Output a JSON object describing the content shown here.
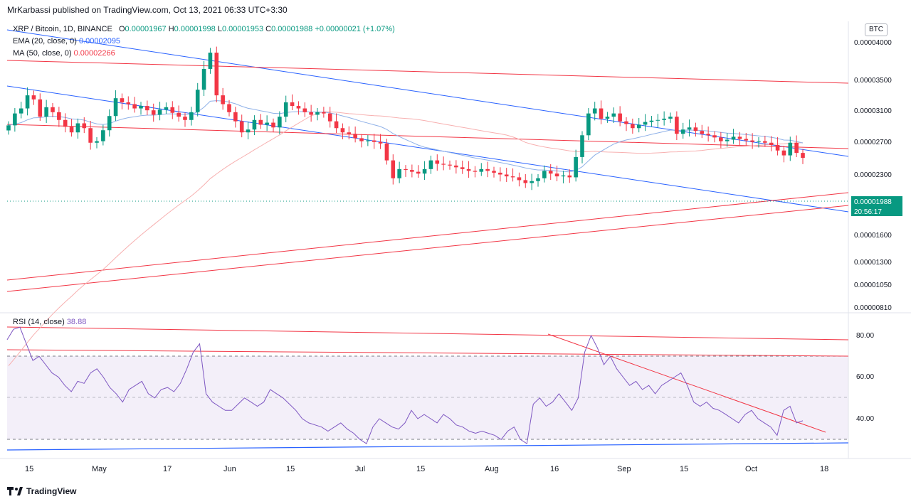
{
  "header": {
    "published": "MrKarbassi published on TradingView.com, Oct 13, 2021 06:33 UTC+3:30"
  },
  "legend": {
    "symbol": "XRP / Bitcoin, 1D, BINANCE",
    "o_label": "O",
    "o_value": "0.00001967",
    "h_label": "H",
    "h_value": "0.00001998",
    "l_label": "L",
    "l_value": "0.00001953",
    "c_label": "C",
    "c_value": "0.00001988",
    "change": "+0.00000021 (+1.07%)",
    "ema_label": "EMA (20, close, 0)",
    "ema_value": "0.00002095",
    "ma_label": "MA (50, close, 0)",
    "ma_value": "0.00002266",
    "rsi_label": "RSI (14, close)",
    "rsi_value": "38.88"
  },
  "currency": "BTC",
  "price_axis": [
    "0.00004000",
    "0.00003500",
    "0.00003100",
    "0.00002700",
    "0.00002300",
    "0.00001600",
    "0.00001300",
    "0.00001050",
    "0.00000810"
  ],
  "last_price": {
    "value": "0.00001988",
    "countdown": "20:56:17"
  },
  "rsi_axis": [
    "80.00",
    "60.00",
    "40.00"
  ],
  "time_axis": [
    "15",
    "May",
    "17",
    "Jun",
    "15",
    "Jul",
    "15",
    "Aug",
    "16",
    "Sep",
    "15",
    "Oct",
    "18"
  ],
  "footer": {
    "brand": "TradingView"
  },
  "colors": {
    "up": "#089981",
    "down": "#f23645",
    "trend_red": "#f23645",
    "trend_blue": "#2962ff",
    "ema": "#8fb1e8",
    "ma": "#f7b0b0",
    "rsi": "#7e57c2"
  },
  "chart_data": {
    "type": "candlestick",
    "ylim": [
      8.1e-06,
      4.2e-05
    ],
    "log_scale": true,
    "candles_close": [
      2.42e-05,
      2.6e-05,
      2.68e-05,
      2.9e-05,
      2.83e-05,
      2.55e-05,
      2.7e-05,
      2.62e-05,
      2.5e-05,
      2.4e-05,
      2.32e-05,
      2.45e-05,
      2.38e-05,
      2.18e-05,
      2.2e-05,
      2.35e-05,
      2.56e-05,
      2.85e-05,
      2.78e-05,
      2.75e-05,
      2.68e-05,
      2.72e-05,
      2.65e-05,
      2.58e-05,
      2.66e-05,
      2.7e-05,
      2.61e-05,
      2.55e-05,
      2.5e-05,
      2.62e-05,
      3e-05,
      3.4e-05,
      3.75e-05,
      2.9e-05,
      2.75e-05,
      2.62e-05,
      2.48e-05,
      2.32e-05,
      2.36e-05,
      2.5e-05,
      2.43e-05,
      2.46e-05,
      2.39e-05,
      2.55e-05,
      2.78e-05,
      2.72e-05,
      2.68e-05,
      2.62e-05,
      2.58e-05,
      2.62e-05,
      2.6e-05,
      2.48e-05,
      2.38e-05,
      2.32e-05,
      2.3e-05,
      2.24e-05,
      2.2e-05,
      2.21e-05,
      2.19e-05,
      2.17e-05,
      1.96e-05,
      1.76e-05,
      1.86e-05,
      1.85e-05,
      1.83e-05,
      1.81e-05,
      1.86e-05,
      1.96e-05,
      1.92e-05,
      1.91e-05,
      1.9e-05,
      1.88e-05,
      1.86e-05,
      1.84e-05,
      1.83e-05,
      1.86e-05,
      1.84e-05,
      1.82e-05,
      1.8e-05,
      1.78e-05,
      1.77e-05,
      1.74e-05,
      1.71e-05,
      1.73e-05,
      1.76e-05,
      1.84e-05,
      1.81e-05,
      1.78e-05,
      1.79e-05,
      1.77e-05,
      2e-05,
      2.28e-05,
      2.6e-05,
      2.68e-05,
      2.52e-05,
      2.55e-05,
      2.6e-05,
      2.48e-05,
      2.44e-05,
      2.38e-05,
      2.43e-05,
      2.47e-05,
      2.49e-05,
      2.5e-05,
      2.52e-05,
      2.55e-05,
      2.3e-05,
      2.36e-05,
      2.39e-05,
      2.34e-05,
      2.3e-05,
      2.28e-05,
      2.25e-05,
      2.2e-05,
      2.22e-05,
      2.26e-05,
      2.23e-05,
      2.21e-05,
      2.19e-05,
      2.2e-05,
      2.18e-05,
      2.15e-05,
      2.08e-05,
      2.02e-05,
      2.18e-05,
      2.05e-05,
      1.99e-05
    ],
    "rsi_values": [
      78,
      83,
      84,
      76,
      68,
      70,
      66,
      62,
      60,
      56,
      53,
      58,
      57,
      62,
      64,
      60,
      55,
      52,
      48,
      54,
      56,
      58,
      52,
      50,
      54,
      55,
      53,
      57,
      64,
      72,
      76,
      52,
      48,
      46,
      44,
      44,
      47,
      50,
      48,
      46,
      48,
      54,
      52,
      50,
      47,
      44,
      40,
      38,
      37,
      36,
      34,
      36,
      38,
      35,
      33,
      30,
      28,
      36,
      40,
      38,
      36,
      35,
      38,
      44,
      40,
      42,
      40,
      38,
      42,
      40,
      37,
      36,
      34,
      33,
      34,
      33,
      32,
      30,
      34,
      36,
      30,
      28,
      47,
      50,
      46,
      48,
      52,
      48,
      44,
      50,
      72,
      80,
      74,
      66,
      70,
      64,
      60,
      56,
      58,
      54,
      56,
      52,
      56,
      58,
      60,
      62,
      56,
      48,
      46,
      48,
      45,
      44,
      42,
      40,
      38,
      42,
      44,
      40,
      38,
      36,
      32,
      44,
      46,
      38,
      39
    ]
  }
}
